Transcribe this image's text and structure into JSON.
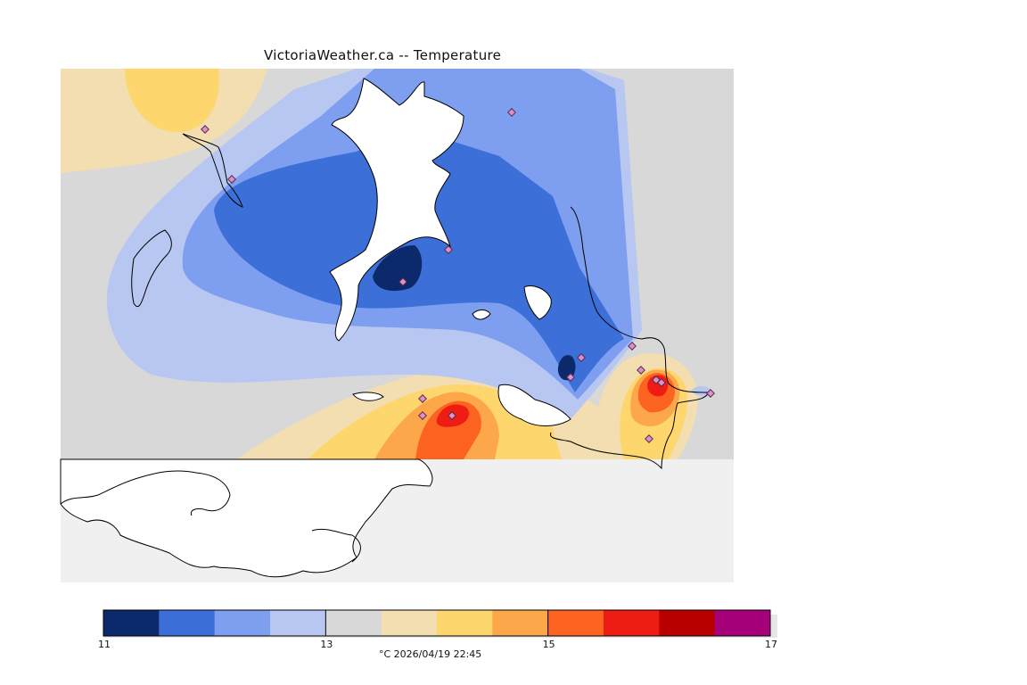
{
  "title": "VictoriaWeather.ca -- Temperature",
  "legend": {
    "colors": [
      "#0c2a6b",
      "#3c6fd8",
      "#7e9ef0",
      "#b8c6f2",
      "#d8d8d8",
      "#f2deb0",
      "#fdd66e",
      "#fca84a",
      "#fd6320",
      "#ee1d14",
      "#b80000",
      "#a6007a"
    ],
    "tick_labels": [
      "11",
      "13",
      "15",
      "17"
    ],
    "tick_values": [
      11,
      13,
      15,
      17
    ],
    "range": [
      11,
      17
    ],
    "unit": "°C",
    "timestamp": "2026/04/19 22:45",
    "caption": "°C 2026/04/19 22:45"
  },
  "colors": {
    "no_data": "#f0f0f0",
    "land_white": "#ffffff",
    "station_marker": "#e090c8",
    "coastline": "#000000"
  }
}
